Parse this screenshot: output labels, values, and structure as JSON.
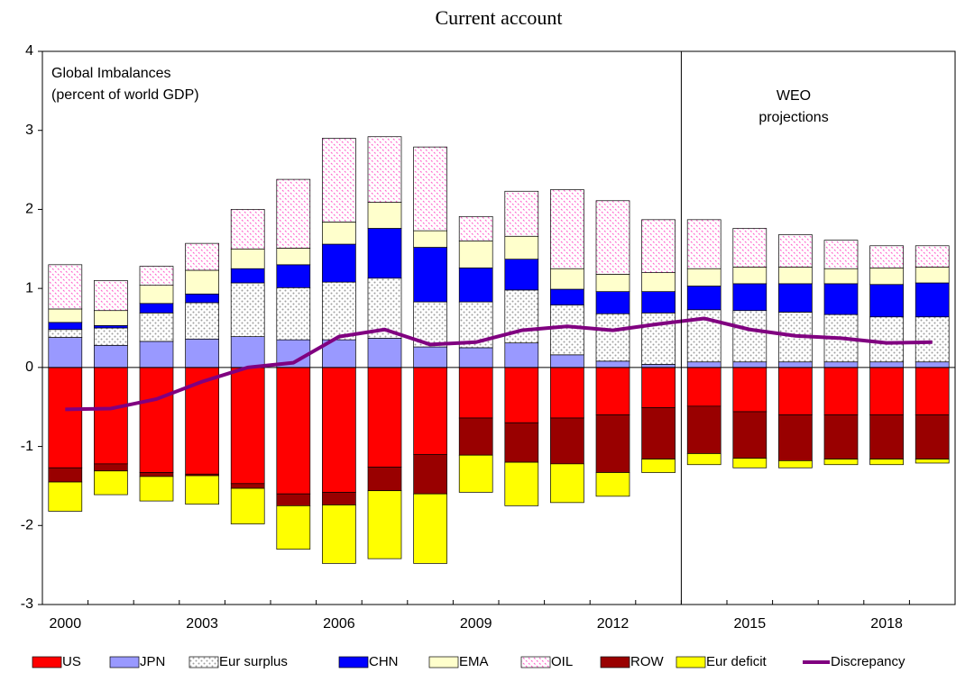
{
  "chart_data": {
    "type": "bar",
    "stacked": true,
    "title": "Current account",
    "annotations": [
      "Global Imbalances",
      "(percent of world GDP)",
      "WEO",
      "projections"
    ],
    "categories": [
      "2000",
      null,
      null,
      "2003",
      null,
      null,
      "2006",
      null,
      null,
      "2009",
      null,
      null,
      "2012",
      null,
      null,
      "2015",
      null,
      null,
      "2018",
      null
    ],
    "ylim": [
      -3,
      4
    ],
    "yticks": [
      -3,
      -2,
      -1,
      0,
      1,
      2,
      3,
      4
    ],
    "series": [
      {
        "name": "US",
        "color": "#ff0000",
        "values": [
          -1.27,
          -1.22,
          -1.33,
          -1.35,
          -1.47,
          -1.6,
          -1.58,
          -1.26,
          -1.1,
          -0.64,
          -0.7,
          -0.64,
          -0.6,
          -0.51,
          -0.49,
          -0.56,
          -0.6,
          -0.6,
          -0.6,
          -0.6
        ]
      },
      {
        "name": "JPN",
        "color": "#9999ff",
        "values": [
          0.38,
          0.28,
          0.33,
          0.36,
          0.39,
          0.35,
          0.35,
          0.37,
          0.26,
          0.25,
          0.31,
          0.16,
          0.08,
          0.04,
          0.07,
          0.07,
          0.07,
          0.07,
          0.07,
          0.07
        ]
      },
      {
        "name": "Eur surplus",
        "color": "#a0a0a0",
        "pattern": "dots",
        "values": [
          0.1,
          0.22,
          0.36,
          0.46,
          0.68,
          0.66,
          0.73,
          0.76,
          0.57,
          0.58,
          0.67,
          0.63,
          0.6,
          0.65,
          0.66,
          0.65,
          0.63,
          0.6,
          0.57,
          0.57
        ]
      },
      {
        "name": "CHN",
        "color": "#0000ff",
        "values": [
          0.09,
          0.03,
          0.12,
          0.11,
          0.18,
          0.29,
          0.48,
          0.63,
          0.69,
          0.43,
          0.39,
          0.2,
          0.28,
          0.27,
          0.3,
          0.34,
          0.36,
          0.39,
          0.41,
          0.43
        ]
      },
      {
        "name": "EMA",
        "color": "#ffffcc",
        "values": [
          0.17,
          0.19,
          0.23,
          0.3,
          0.25,
          0.21,
          0.28,
          0.33,
          0.21,
          0.34,
          0.29,
          0.26,
          0.22,
          0.24,
          0.22,
          0.21,
          0.21,
          0.19,
          0.21,
          0.2
        ]
      },
      {
        "name": "OIL",
        "color": "#ff66cc",
        "pattern": "dots",
        "values": [
          0.56,
          0.38,
          0.24,
          0.34,
          0.5,
          0.87,
          1.06,
          0.83,
          1.06,
          0.31,
          0.57,
          1.0,
          0.93,
          0.67,
          0.62,
          0.49,
          0.41,
          0.36,
          0.28,
          0.27
        ]
      },
      {
        "name": "ROW",
        "color": "#990000",
        "values": [
          -0.18,
          -0.09,
          -0.05,
          -0.02,
          -0.06,
          -0.15,
          -0.16,
          -0.3,
          -0.5,
          -0.47,
          -0.5,
          -0.58,
          -0.73,
          -0.65,
          -0.6,
          -0.59,
          -0.58,
          -0.56,
          -0.56,
          -0.56
        ]
      },
      {
        "name": "Eur deficit",
        "color": "#ffff00",
        "values": [
          -0.37,
          -0.3,
          -0.31,
          -0.36,
          -0.45,
          -0.55,
          -0.74,
          -0.86,
          -0.88,
          -0.47,
          -0.55,
          -0.49,
          -0.3,
          -0.17,
          -0.14,
          -0.12,
          -0.09,
          -0.07,
          -0.07,
          -0.05
        ]
      },
      {
        "name": "Discrepancy",
        "type": "line",
        "color": "#800080",
        "values": [
          -0.53,
          -0.52,
          -0.4,
          -0.18,
          0.0,
          0.06,
          0.39,
          0.48,
          0.29,
          0.32,
          0.47,
          0.52,
          0.47,
          0.55,
          0.62,
          0.48,
          0.4,
          0.37,
          0.31,
          0.32
        ]
      }
    ]
  }
}
